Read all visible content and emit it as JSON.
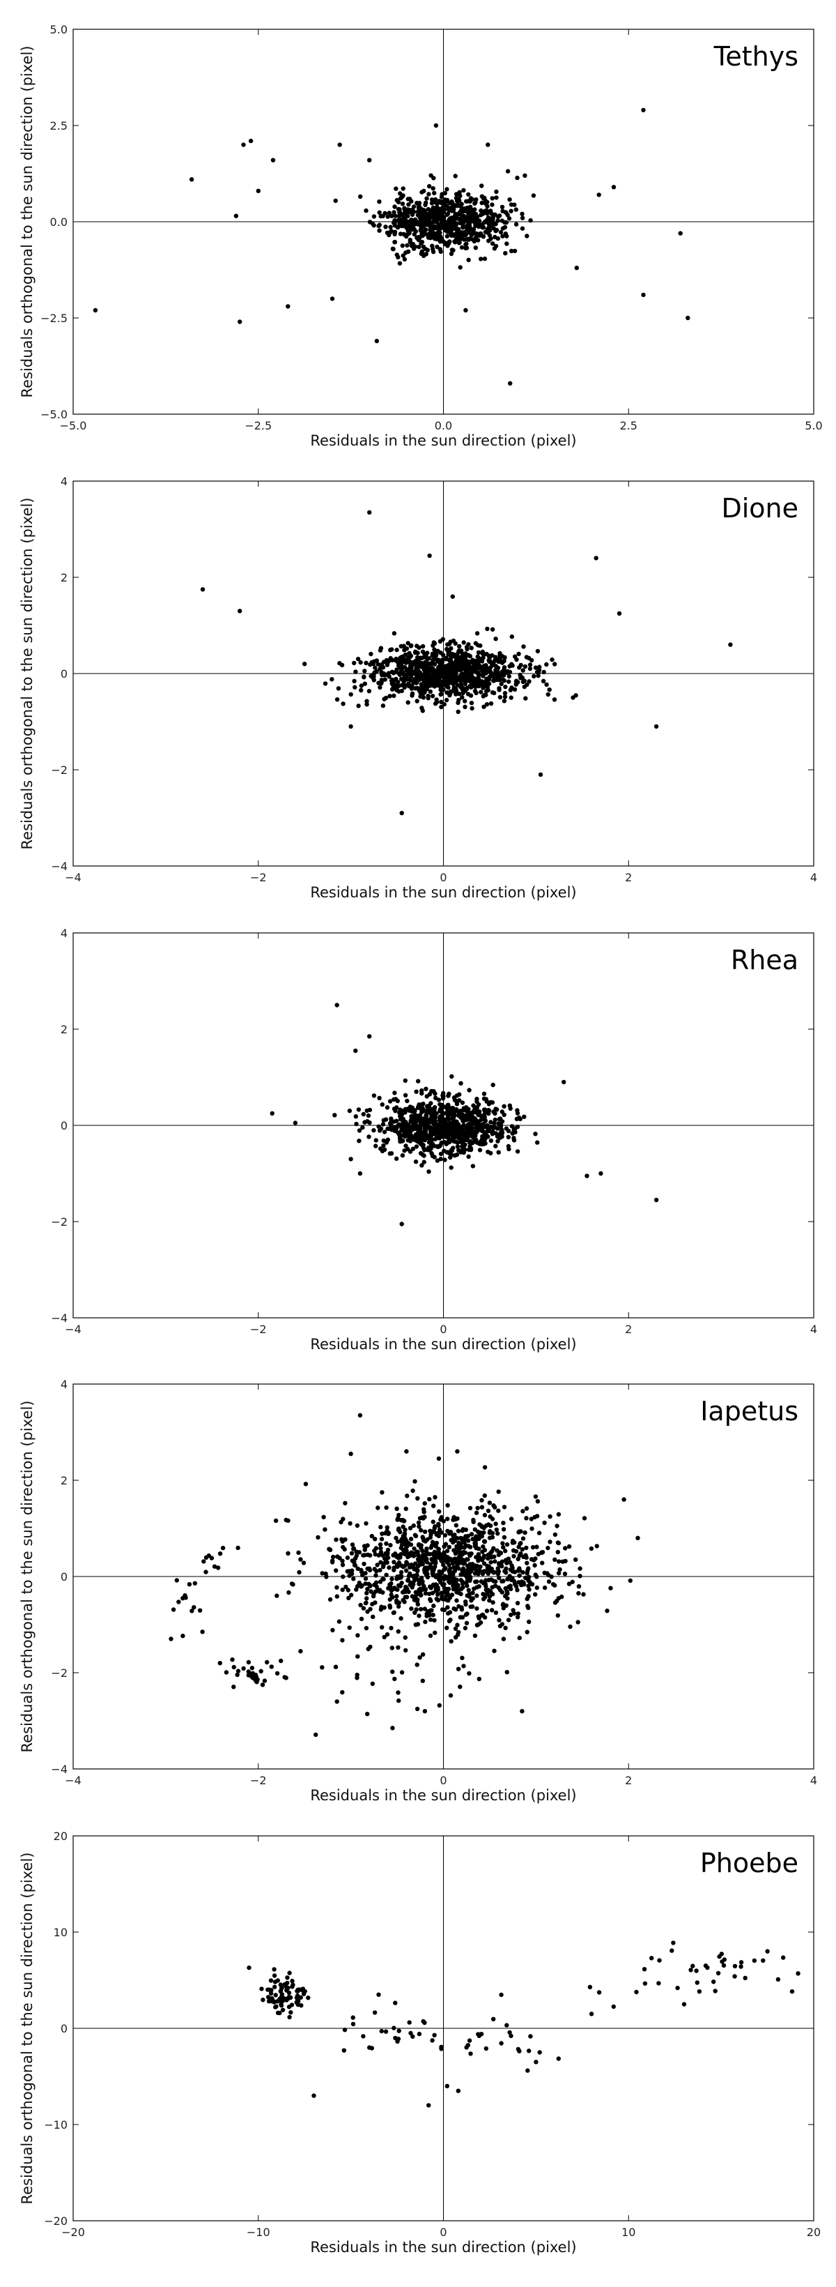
{
  "chart_data": [
    {
      "type": "scatter",
      "title": "Tethys",
      "xlabel": "Residuals in the sun direction (pixel)",
      "ylabel": "Residuals orthogonal to the sun direction (pixel)",
      "xlim": [
        -5,
        5
      ],
      "ylim": [
        -5,
        5
      ],
      "xticks": [
        -5,
        -2.5,
        0,
        2.5,
        5
      ],
      "yticks": [
        -5,
        -2.5,
        0,
        2.5,
        5
      ],
      "xtick_labels": [
        "−5.0",
        "−2.5",
        "0.0",
        "2.5",
        "5.0"
      ],
      "ytick_labels": [
        "−5.0",
        "−2.5",
        "0.0",
        "2.5",
        "5.0"
      ],
      "crosshair": true,
      "grid": false,
      "core": {
        "count": 700,
        "sx": 0.42,
        "sy": 0.38
      },
      "outliers": [
        [
          -4.7,
          -2.3
        ],
        [
          -3.4,
          1.1
        ],
        [
          -2.7,
          2.0
        ],
        [
          -2.6,
          2.1
        ],
        [
          -2.75,
          -2.6
        ],
        [
          -2.3,
          1.6
        ],
        [
          -2.1,
          -2.2
        ],
        [
          -2.5,
          0.8
        ],
        [
          -2.8,
          0.15
        ],
        [
          -1.4,
          2.0
        ],
        [
          -1.5,
          -2.0
        ],
        [
          -0.9,
          -3.1
        ],
        [
          -1.0,
          1.6
        ],
        [
          0.9,
          -4.2
        ],
        [
          0.3,
          -2.3
        ],
        [
          1.1,
          1.2
        ],
        [
          1.8,
          -1.2
        ],
        [
          2.3,
          0.9
        ],
        [
          2.1,
          0.7
        ],
        [
          2.7,
          2.9
        ],
        [
          2.7,
          -1.9
        ],
        [
          3.2,
          -0.3
        ],
        [
          3.3,
          -2.5
        ],
        [
          -0.1,
          2.5
        ],
        [
          0.6,
          2.0
        ]
      ]
    },
    {
      "type": "scatter",
      "title": "Dione",
      "xlabel": "Residuals in the sun direction (pixel)",
      "ylabel": "Residuals orthogonal to the sun direction (pixel)",
      "xlim": [
        -4,
        4
      ],
      "ylim": [
        -4,
        4
      ],
      "xticks": [
        -4,
        -2,
        0,
        2,
        4
      ],
      "yticks": [
        -4,
        -2,
        0,
        2,
        4
      ],
      "xtick_labels": [
        "−4",
        "−2",
        "0",
        "2",
        "4"
      ],
      "ytick_labels": [
        "−4",
        "−2",
        "0",
        "2",
        "4"
      ],
      "crosshair": true,
      "grid": false,
      "core": {
        "count": 900,
        "sx": 0.42,
        "sy": 0.28
      },
      "outliers": [
        [
          -0.8,
          3.35
        ],
        [
          -0.15,
          2.45
        ],
        [
          1.65,
          2.4
        ],
        [
          -2.6,
          1.75
        ],
        [
          -2.2,
          1.3
        ],
        [
          1.9,
          1.25
        ],
        [
          3.1,
          0.6
        ],
        [
          2.3,
          -1.1
        ],
        [
          1.05,
          -2.1
        ],
        [
          -0.45,
          -2.9
        ],
        [
          -1.0,
          -1.1
        ],
        [
          0.1,
          1.6
        ],
        [
          -1.5,
          0.2
        ],
        [
          1.4,
          -0.5
        ]
      ]
    },
    {
      "type": "scatter",
      "title": "Rhea",
      "xlabel": "Residuals in the sun direction (pixel)",
      "ylabel": "",
      "xlim": [
        -4,
        4
      ],
      "ylim": [
        -4,
        4
      ],
      "xticks": [
        -4,
        -2,
        0,
        2,
        4
      ],
      "yticks": [
        -4,
        -2,
        0,
        2,
        4
      ],
      "xtick_labels": [
        "−4",
        "−2",
        "0",
        "2",
        "4"
      ],
      "ytick_labels": [
        "−4",
        "−2",
        "0",
        "2",
        "4"
      ],
      "crosshair": true,
      "grid": false,
      "core": {
        "count": 850,
        "sx": 0.35,
        "sy": 0.3
      },
      "outliers": [
        [
          -1.15,
          2.5
        ],
        [
          -0.95,
          1.55
        ],
        [
          -0.8,
          1.85
        ],
        [
          -1.85,
          0.25
        ],
        [
          -1.6,
          0.05
        ],
        [
          -1.0,
          -0.7
        ],
        [
          -0.9,
          -1.0
        ],
        [
          -0.45,
          -2.05
        ],
        [
          1.55,
          -1.05
        ],
        [
          1.7,
          -1.0
        ],
        [
          2.3,
          -1.55
        ],
        [
          1.3,
          0.9
        ]
      ]
    },
    {
      "type": "scatter",
      "title": "Iapetus",
      "xlabel": "Residuals in the sun direction (pixel)",
      "ylabel": "Residuals orthogonal to the sun direction (pixel)",
      "xlim": [
        -4,
        4
      ],
      "ylim": [
        -4,
        4
      ],
      "xticks": [
        -4,
        -2,
        0,
        2,
        4
      ],
      "yticks": [
        -4,
        -2,
        0,
        2,
        4
      ],
      "xtick_labels": [
        "−4",
        "−2",
        "0",
        "2",
        "4"
      ],
      "ytick_labels": [
        "−4",
        "−2",
        "0",
        "2",
        "4"
      ],
      "crosshair": true,
      "grid": false,
      "core": {
        "count": 1100,
        "sx": 0.6,
        "sy": 0.62,
        "mx": 0.05,
        "my": 0.2
      },
      "clusters": [
        {
          "count": 30,
          "mx": -2.1,
          "my": -2.05,
          "sx": 0.15,
          "sy": 0.15
        },
        {
          "count": 14,
          "mx": -2.85,
          "my": -0.6,
          "sx": 0.12,
          "sy": 0.45
        },
        {
          "count": 10,
          "mx": -2.45,
          "my": 0.4,
          "sx": 0.12,
          "sy": 0.15
        },
        {
          "count": 40,
          "mx": -0.5,
          "my": -2.0,
          "sx": 0.5,
          "sy": 0.6
        }
      ],
      "outliers": [
        [
          -0.9,
          3.35
        ],
        [
          -1.0,
          2.55
        ],
        [
          -0.4,
          2.6
        ],
        [
          -0.05,
          2.45
        ],
        [
          0.15,
          2.6
        ],
        [
          1.95,
          1.6
        ],
        [
          2.1,
          0.8
        ],
        [
          -1.15,
          -2.6
        ],
        [
          -0.55,
          -3.15
        ],
        [
          -0.2,
          -2.8
        ],
        [
          0.85,
          -2.8
        ],
        [
          -1.8,
          -0.4
        ]
      ]
    },
    {
      "type": "scatter",
      "title": "Phoebe",
      "xlabel": "Residuals in the sun direction (pixel)",
      "ylabel": "Residuals orthogonal to the sun direction (pixel)",
      "xlim": [
        -20,
        20
      ],
      "ylim": [
        -20,
        20
      ],
      "xticks": [
        -20,
        -10,
        0,
        10,
        20
      ],
      "yticks": [
        -20,
        -10,
        0,
        10,
        20
      ],
      "xtick_labels": [
        "−20",
        "−10",
        "0",
        "10",
        "20"
      ],
      "ytick_labels": [
        "−20",
        "−10",
        "0",
        "10",
        "20"
      ],
      "crosshair": true,
      "grid": false,
      "clusters": [
        {
          "count": 80,
          "mx": -8.5,
          "my": 3.5,
          "sx": 0.6,
          "sy": 0.9
        },
        {
          "count": 30,
          "mx": -2.0,
          "my": -0.5,
          "sx": 2.2,
          "sy": 1.5
        },
        {
          "count": 15,
          "mx": 3.5,
          "my": -1.0,
          "sx": 1.8,
          "sy": 1.6
        },
        {
          "count": 28,
          "mx": 12.5,
          "my": 5.5,
          "sx": 2.8,
          "sy": 1.8
        },
        {
          "count": 10,
          "mx": 16.0,
          "my": 7.5,
          "sx": 1.2,
          "sy": 1.2
        }
      ],
      "outliers": [
        [
          -10.5,
          6.3
        ],
        [
          -7.0,
          -7.0
        ],
        [
          -0.8,
          -8.0
        ],
        [
          0.2,
          -6.0
        ],
        [
          0.8,
          -6.5
        ],
        [
          5.0,
          -3.5
        ],
        [
          5.2,
          -2.5
        ],
        [
          17.5,
          8.0
        ],
        [
          8.0,
          1.5
        ],
        [
          -4.0,
          -2.0
        ],
        [
          -3.5,
          3.5
        ],
        [
          13.0,
          2.5
        ]
      ]
    }
  ]
}
